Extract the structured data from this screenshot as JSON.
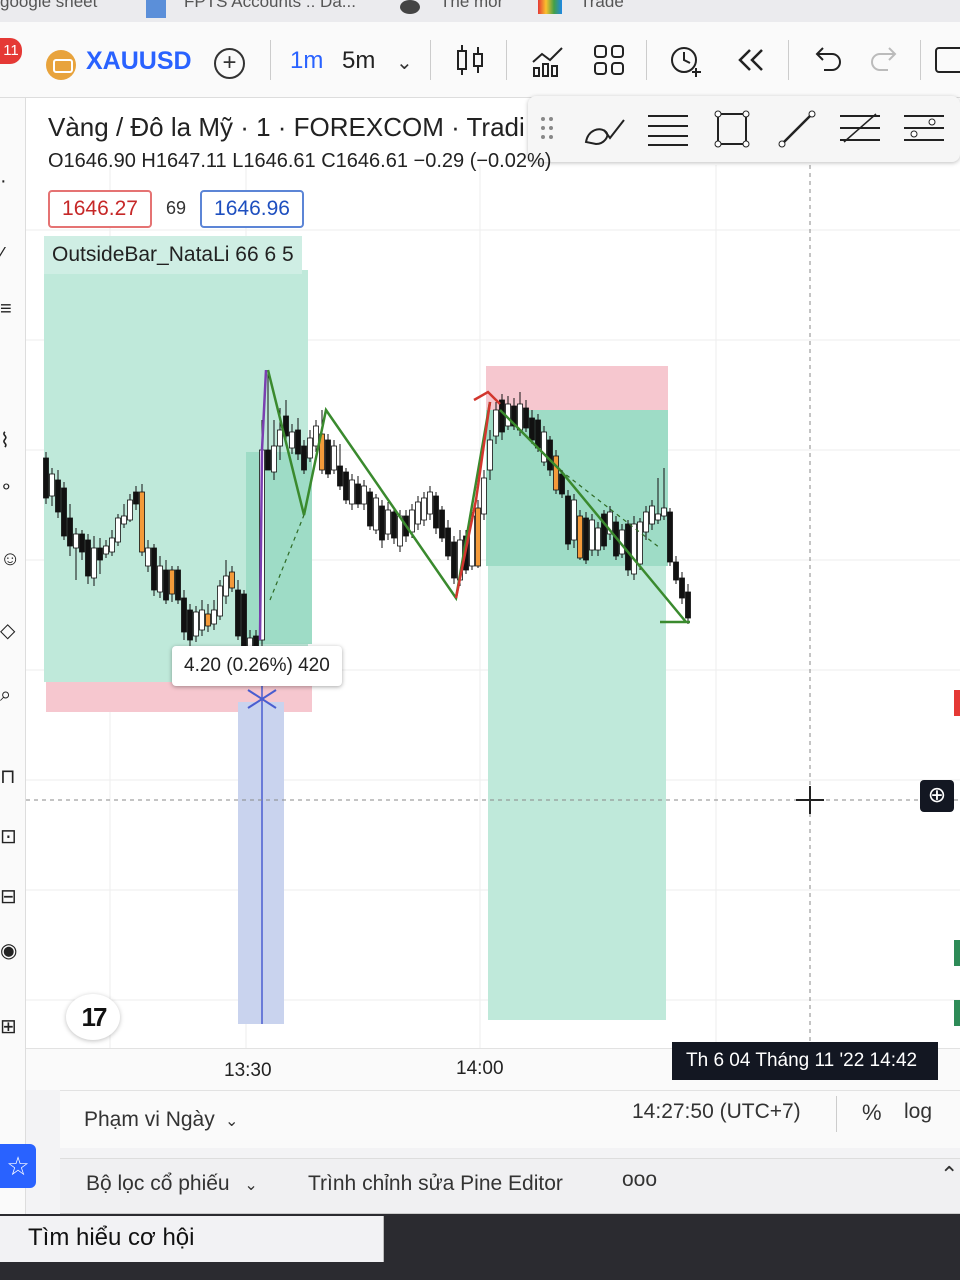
{
  "browser": {
    "bookmarks": [
      "google sheet",
      "FPTS Accounts :: Da...",
      "The mor",
      "Trade"
    ]
  },
  "toolbar": {
    "notification_count": "11",
    "symbol": "XAUUSD",
    "timeframe_active": "1m",
    "timeframe_other": "5m",
    "icons": [
      "plus-circle-icon",
      "candles-icon",
      "indicators-icon",
      "layout-grid-icon",
      "alert-clock-icon",
      "replay-icon",
      "undo-icon",
      "redo-icon",
      "window-icon"
    ]
  },
  "legend": {
    "title": "Vàng / Đô la Mỹ · 1 · FOREXCOM · Tradi",
    "open": "O1646.90",
    "high": "H1647.11",
    "low": "L1646.61",
    "close": "C1646.61",
    "change": "−0.29 (−0.02%)",
    "sell_price": "1646.27",
    "spread": "69",
    "buy_price": "1646.96",
    "indicator_name": "OutsideBar_NataLi 66 6 5"
  },
  "measure_label": "4.20 (0.26%) 420",
  "time_axis": {
    "labels": [
      "13:30",
      "14:00"
    ],
    "crosshair_time": "Th 6 04 Tháng 11 '22    14:42"
  },
  "status": {
    "range": "Phạm vi Ngày",
    "clock": "14:27:50 (UTC+7)",
    "percent": "%",
    "log": "log"
  },
  "panel_tabs": [
    "Bộ lọc cổ phiếu",
    "Trình chỉnh sửa Pine Editor",
    "ooo"
  ],
  "notification_text": "Tìm hiểu cơ hội",
  "colors": {
    "accent": "#2962ff",
    "profit_zone": "#b7e7d6",
    "loss_zone": "#f6c7cf",
    "measure_zone": "#c7d2ee",
    "bull_candle": "#ffffff",
    "bear_candle": "#111111",
    "signal_candle": "#f39a3a",
    "zigzag": "#3a8a2e"
  }
}
